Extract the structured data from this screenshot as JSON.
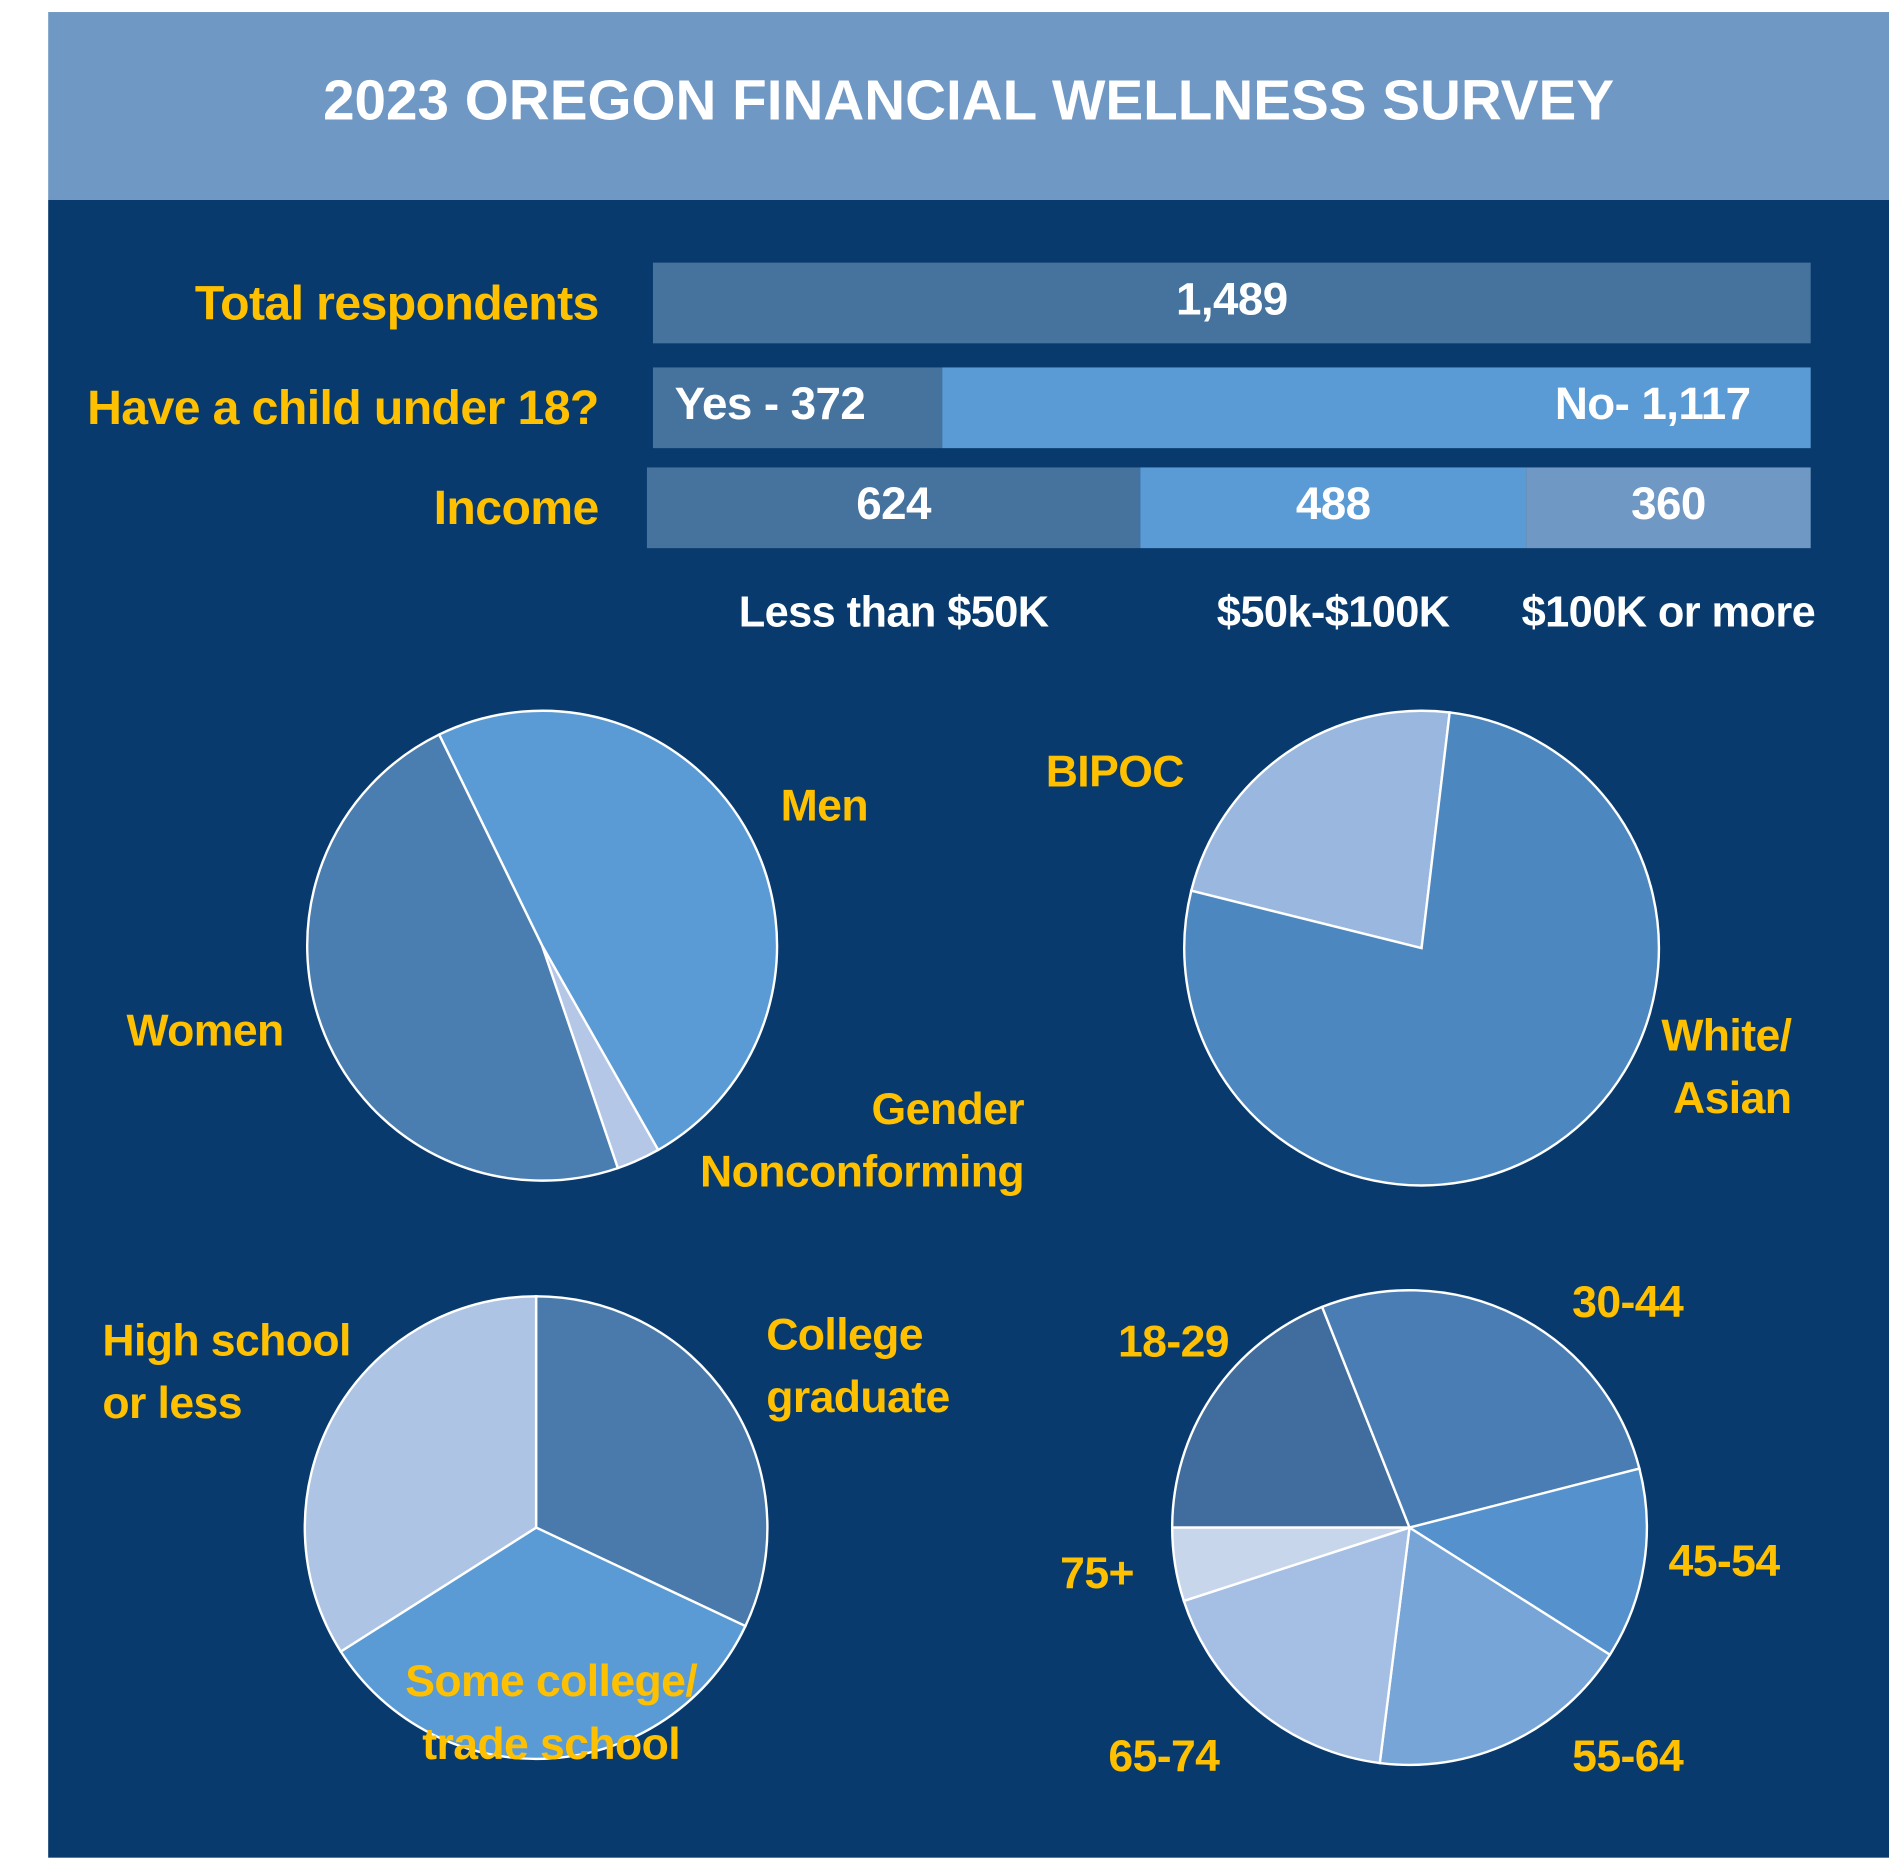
{
  "header": {
    "title": "2023 OREGON FINANCIAL WELLNESS SURVEY"
  },
  "chart_data": [
    {
      "type": "bar",
      "rows": [
        {
          "label": "Total respondents",
          "values": [
            1489
          ],
          "value_labels": [
            "1,489"
          ],
          "colors": [
            "#46739e"
          ]
        },
        {
          "label": "Have a child under 18?",
          "values": [
            372,
            1117
          ],
          "value_labels": [
            "Yes - 372",
            "No- 1,117"
          ],
          "colors": [
            "#46739e",
            "#5b9bd5"
          ]
        },
        {
          "label": "Income",
          "values": [
            624,
            488,
            360
          ],
          "categories": [
            "Less than $50K",
            "$50k-$100K",
            "$100K or more"
          ],
          "colors": [
            "#46739e",
            "#5b9bd5",
            "#6f98c4"
          ]
        }
      ]
    },
    {
      "type": "pie",
      "categories": [
        "Men",
        "Gender Nonconforming",
        "Women"
      ],
      "values": [
        49,
        3,
        48
      ],
      "colors": [
        "#5b9bd5",
        "#b4c7e7",
        "#4a7db0"
      ]
    },
    {
      "type": "pie",
      "categories": [
        "BIPOC",
        "White/ Asian"
      ],
      "values": [
        23,
        77
      ],
      "colors": [
        "#9ab8df",
        "#4d87bf"
      ]
    },
    {
      "type": "pie",
      "categories": [
        "College graduate",
        "Some college/ trade school",
        "High school or less"
      ],
      "values": [
        32,
        34,
        34
      ],
      "colors": [
        "#4a7aac",
        "#5b9bd5",
        "#adc4e4"
      ]
    },
    {
      "type": "pie",
      "categories": [
        "18-29",
        "30-44",
        "45-54",
        "55-64",
        "65-74",
        "75+"
      ],
      "values": [
        19,
        27,
        13,
        18,
        18,
        5
      ],
      "colors": [
        "#406d9d",
        "#4a7db3",
        "#5591cc",
        "#77a5d8",
        "#a5bfe4",
        "#c8d6ec"
      ]
    }
  ]
}
